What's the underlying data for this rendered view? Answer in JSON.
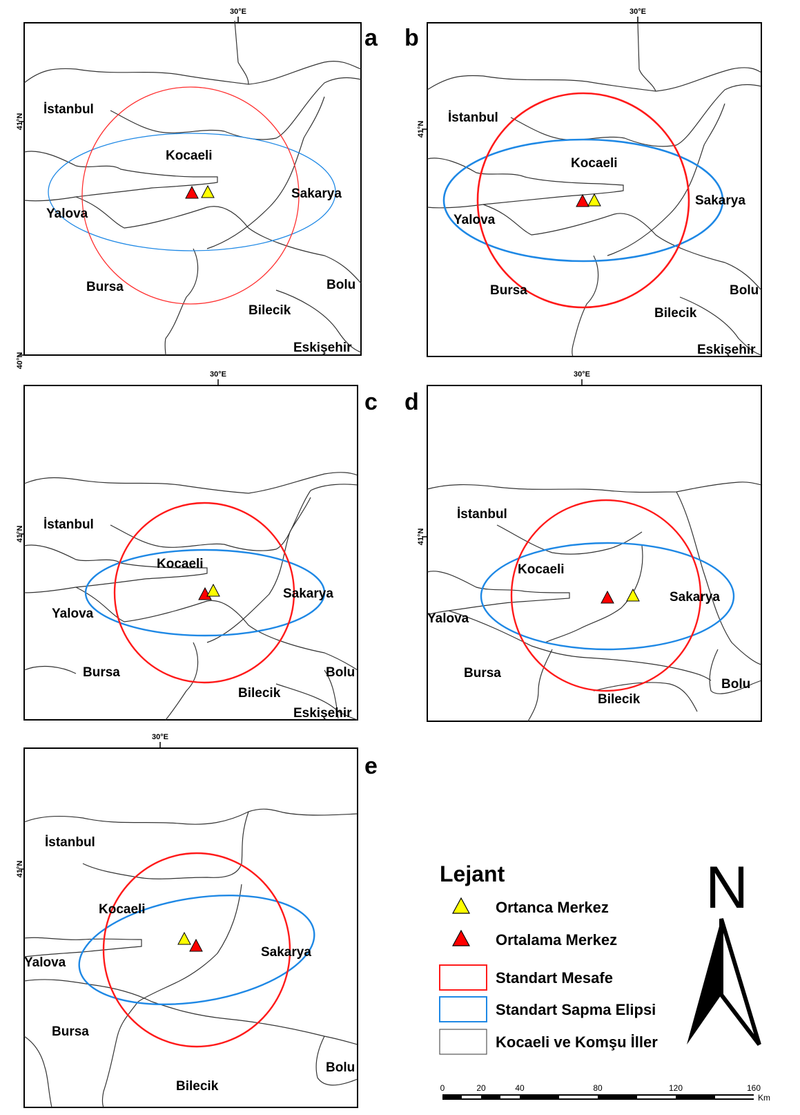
{
  "panels": [
    {
      "id": "a",
      "label": "a",
      "lon_label": "30°E",
      "lat_labels": [
        "41°N",
        "40°N"
      ],
      "places": [
        "İstanbul",
        "Kocaeli",
        "Sakarya",
        "Yalova",
        "Bursa",
        "Bolu",
        "Bilecik",
        "Eskişehir"
      ]
    },
    {
      "id": "b",
      "label": "b",
      "lon_label": "30°E",
      "lat_labels": [
        "41°N"
      ],
      "places": [
        "İstanbul",
        "Kocaeli",
        "Sakarya",
        "Yalova",
        "Bursa",
        "Bolu",
        "Bilecik",
        "Eskişehir"
      ]
    },
    {
      "id": "c",
      "label": "c",
      "lon_label": "30°E",
      "lat_labels": [
        "41°N"
      ],
      "places": [
        "İstanbul",
        "Kocaeli",
        "Sakarya",
        "Yalova",
        "Bursa",
        "Bolu",
        "Bilecik",
        "Eskişehir"
      ]
    },
    {
      "id": "d",
      "label": "d",
      "lon_label": "30°E",
      "lat_labels": [
        "41°N"
      ],
      "places": [
        "İstanbul",
        "Kocaeli",
        "Sakarya",
        "Yalova",
        "Bursa",
        "Bolu",
        "Bilecik"
      ]
    },
    {
      "id": "e",
      "label": "e",
      "lon_label": "30°E",
      "lat_labels": [
        "41°N"
      ],
      "places": [
        "İstanbul",
        "Kocaeli",
        "Sakarya",
        "Yalova",
        "Bursa",
        "Bolu",
        "Bilecik"
      ]
    }
  ],
  "legend": {
    "title": "Lejant",
    "items": [
      {
        "label": "Ortanca Merkez",
        "symbol": "yellow-triangle"
      },
      {
        "label": "Ortalama Merkez",
        "symbol": "red-triangle"
      },
      {
        "label": "Standart Mesafe",
        "symbol": "red-rectangle"
      },
      {
        "label": "Standart Sapma Elipsi",
        "symbol": "blue-rectangle"
      },
      {
        "label": "Kocaeli ve Komşu İller",
        "symbol": "grey-rectangle"
      }
    ]
  },
  "north_arrow": {
    "label": "N"
  },
  "scale_bar": {
    "ticks": [
      "0",
      "20",
      "40",
      "80",
      "120",
      "160"
    ],
    "unit": "Km"
  },
  "colors": {
    "median_center": "#ffff00",
    "mean_center": "#ff0000",
    "standard_distance": "#ff0000",
    "std_ellipse": "#1e88e5",
    "boundaries": "#333333"
  }
}
